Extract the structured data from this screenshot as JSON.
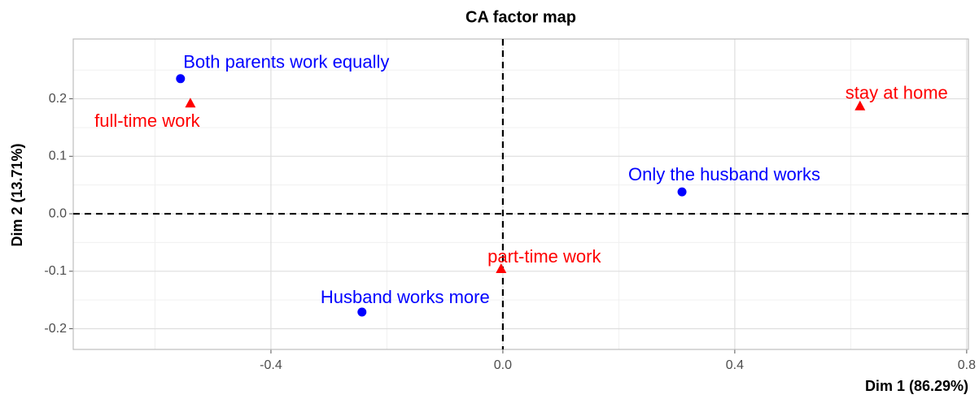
{
  "chart_data": {
    "type": "scatter",
    "title": "CA factor map",
    "x_label": "Dim 1 (86.29%)",
    "y_label": "Dim 2 (13.71%)",
    "xlim": [
      -0.741,
      0.803
    ],
    "ylim": [
      -0.236,
      0.304
    ],
    "xticks": [
      -0.4,
      {
        "value": 0,
        "label": "0.0"
      },
      0.4,
      0.8
    ],
    "yticks": [
      -0.2,
      -0.1,
      {
        "value": 0,
        "label": "0.0"
      },
      0.1,
      0.2
    ],
    "xminor": [
      -0.6,
      -0.2,
      0.2,
      0.6
    ],
    "yminor": [
      -0.15,
      -0.05,
      0.05,
      0.15,
      0.25
    ],
    "grid": true,
    "ref_lines": {
      "x": 0,
      "y": 0
    },
    "series": [
      {
        "color": "#0000ff",
        "marker": "circle",
        "labels": [
          "Both parents work equally",
          "Only the husband works",
          "Husband works more"
        ],
        "x": [
          -0.556,
          0.309,
          -0.243
        ],
        "values": [
          0.235,
          0.038,
          -0.171
        ]
      },
      {
        "color": "#ff0000",
        "marker": "triangle",
        "labels": [
          "full-time work",
          "stay at home",
          "part-time work"
        ],
        "x": [
          -0.539,
          0.616,
          -0.003
        ],
        "values": [
          0.192,
          0.187,
          -0.096
        ]
      }
    ]
  }
}
